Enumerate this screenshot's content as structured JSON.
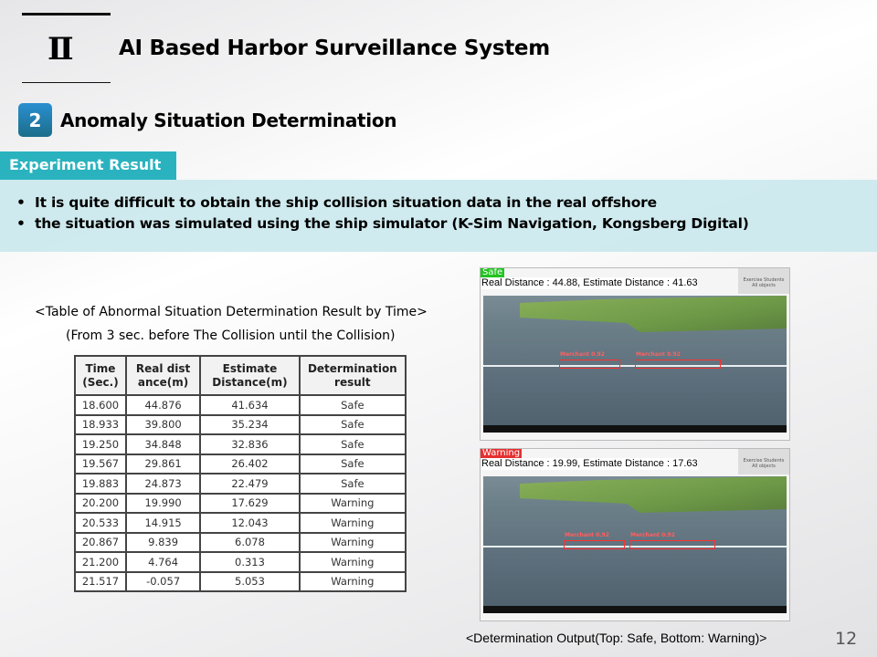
{
  "header": {
    "section_numeral": "Ⅱ",
    "title": "AI Based Harbor Surveillance System"
  },
  "subsection": {
    "number": "2",
    "title": "Anomaly Situation Determination"
  },
  "label": "Experiment Result",
  "bullets": [
    "It is quite difficult to obtain the ship collision situation data in the real offshore",
    "the situation was simulated using the ship simulator (K-Sim Navigation, Kongsberg Digital)"
  ],
  "table": {
    "caption": "<Table of Abnormal Situation Determination Result by Time>",
    "subcaption": "(From 3 sec. before The Collision until the Collision)",
    "headers": [
      "Time (Sec.)",
      "Real dist ance(m)",
      "Estimate Distance(m)",
      "Determination result"
    ],
    "rows": [
      [
        "18.600",
        "44.876",
        "41.634",
        "Safe"
      ],
      [
        "18.933",
        "39.800",
        "35.234",
        "Safe"
      ],
      [
        "19.250",
        "34.848",
        "32.836",
        "Safe"
      ],
      [
        "19.567",
        "29.861",
        "26.402",
        "Safe"
      ],
      [
        "19.883",
        "24.873",
        "22.479",
        "Safe"
      ],
      [
        "20.200",
        "19.990",
        "17.629",
        "Warning"
      ],
      [
        "20.533",
        "14.915",
        "12.043",
        "Warning"
      ],
      [
        "20.867",
        "9.839",
        "6.078",
        "Warning"
      ],
      [
        "21.200",
        "4.764",
        "0.313",
        "Warning"
      ],
      [
        "21.517",
        "-0.057",
        "5.053",
        "Warning"
      ]
    ]
  },
  "outputs": [
    {
      "status": "Safe",
      "status_color": "#22c322",
      "distance_text": "Real Distance : 44.88, Estimate Distance : 41.63",
      "panel": [
        "Exercise  Students",
        "All objects"
      ],
      "ship_labels": [
        "Merchant 0.92",
        "Merchant 0.92"
      ]
    },
    {
      "status": "Warning",
      "status_color": "#e53030",
      "distance_text": "Real Distance : 19.99, Estimate Distance : 17.63",
      "panel": [
        "Exercise  Students",
        "All objects"
      ],
      "ship_labels": [
        "Merchant 0.92",
        "Merchant 0.92"
      ]
    }
  ],
  "output_caption": "<Determination Output(Top: Safe, Bottom: Warning)>",
  "page_number": "12"
}
